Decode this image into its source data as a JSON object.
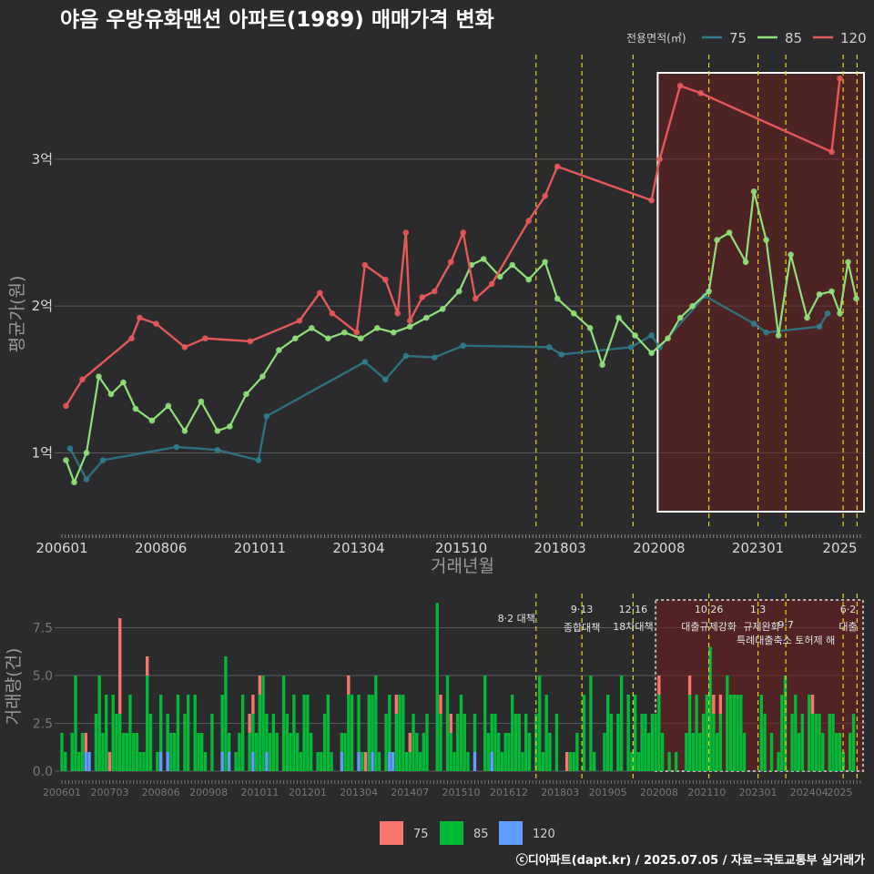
{
  "title": "야음 우방유화맨션 아파트(1989) 매매가격 변화",
  "footer": "ⓒ디아파트(dapt.kr) / 2025.07.05 / 자료=국토교통부 실거래가",
  "legend_top": {
    "title": "전용면적(㎡)",
    "items": [
      "75",
      "85",
      "120"
    ]
  },
  "legend_bottom": {
    "items": [
      "75",
      "85",
      "120"
    ]
  },
  "colors": {
    "s75": "#2e7d8c",
    "s85": "#90e07a",
    "s120": "#e5585a",
    "b75": "#f8766d",
    "b85": "#00ba38",
    "b120": "#619cff",
    "policy": "#e8d21d",
    "highlight": "#6b1e1e"
  },
  "chart_data": [
    {
      "type": "line",
      "title": "야음 우방유화맨션 아파트(1989) 매매가격 변화",
      "xlabel": "거래년월",
      "ylabel": "평균가(원)",
      "x_ticks": [
        "200601",
        "200806",
        "201011",
        "201304",
        "201510",
        "201803",
        "202008",
        "202301",
        "2025"
      ],
      "y_ticks": [
        "1억",
        "2억",
        "3억"
      ],
      "y_range_billion_krw": [
        0.6,
        3.65
      ],
      "series": [
        {
          "name": "75",
          "points": [
            [
              2006.2,
              1.03
            ],
            [
              2006.6,
              0.82
            ],
            [
              2007.0,
              0.95
            ],
            [
              2008.8,
              1.04
            ],
            [
              2009.8,
              1.02
            ],
            [
              2010.8,
              0.95
            ],
            [
              2011.0,
              1.25
            ],
            [
              2013.4,
              1.62
            ],
            [
              2013.9,
              1.5
            ],
            [
              2014.4,
              1.66
            ],
            [
              2015.1,
              1.65
            ],
            [
              2015.8,
              1.73
            ],
            [
              2017.9,
              1.72
            ],
            [
              2018.2,
              1.67
            ],
            [
              2019.9,
              1.72
            ],
            [
              2020.4,
              1.8
            ],
            [
              2020.6,
              1.72
            ],
            [
              2021.7,
              2.07
            ],
            [
              2022.9,
              1.88
            ],
            [
              2023.2,
              1.82
            ],
            [
              2024.5,
              1.86
            ],
            [
              2024.7,
              1.95
            ]
          ]
        },
        {
          "name": "85",
          "points": [
            [
              2006.1,
              0.95
            ],
            [
              2006.3,
              0.8
            ],
            [
              2006.6,
              1.0
            ],
            [
              2006.9,
              1.52
            ],
            [
              2007.2,
              1.4
            ],
            [
              2007.5,
              1.48
            ],
            [
              2007.8,
              1.3
            ],
            [
              2008.2,
              1.22
            ],
            [
              2008.6,
              1.32
            ],
            [
              2009.0,
              1.15
            ],
            [
              2009.4,
              1.35
            ],
            [
              2009.8,
              1.15
            ],
            [
              2010.1,
              1.18
            ],
            [
              2010.5,
              1.4
            ],
            [
              2010.9,
              1.52
            ],
            [
              2011.3,
              1.7
            ],
            [
              2011.7,
              1.78
            ],
            [
              2012.1,
              1.85
            ],
            [
              2012.5,
              1.78
            ],
            [
              2012.9,
              1.82
            ],
            [
              2013.3,
              1.78
            ],
            [
              2013.7,
              1.85
            ],
            [
              2014.1,
              1.82
            ],
            [
              2014.5,
              1.86
            ],
            [
              2014.9,
              1.92
            ],
            [
              2015.3,
              1.98
            ],
            [
              2015.7,
              2.1
            ],
            [
              2016.0,
              2.28
            ],
            [
              2016.3,
              2.32
            ],
            [
              2016.7,
              2.2
            ],
            [
              2017.0,
              2.28
            ],
            [
              2017.4,
              2.18
            ],
            [
              2017.8,
              2.3
            ],
            [
              2018.1,
              2.05
            ],
            [
              2018.5,
              1.95
            ],
            [
              2018.9,
              1.85
            ],
            [
              2019.2,
              1.6
            ],
            [
              2019.6,
              1.92
            ],
            [
              2020.0,
              1.8
            ],
            [
              2020.4,
              1.68
            ],
            [
              2020.8,
              1.78
            ],
            [
              2021.1,
              1.92
            ],
            [
              2021.4,
              2.0
            ],
            [
              2021.8,
              2.1
            ],
            [
              2022.0,
              2.45
            ],
            [
              2022.3,
              2.5
            ],
            [
              2022.7,
              2.3
            ],
            [
              2022.9,
              2.78
            ],
            [
              2023.2,
              2.45
            ],
            [
              2023.5,
              1.8
            ],
            [
              2023.8,
              2.35
            ],
            [
              2024.2,
              1.92
            ],
            [
              2024.5,
              2.08
            ],
            [
              2024.8,
              2.1
            ],
            [
              2025.0,
              1.95
            ],
            [
              2025.2,
              2.3
            ],
            [
              2025.4,
              2.05
            ]
          ]
        },
        {
          "name": "120",
          "points": [
            [
              2006.1,
              1.32
            ],
            [
              2006.5,
              1.5
            ],
            [
              2007.7,
              1.78
            ],
            [
              2007.9,
              1.92
            ],
            [
              2008.3,
              1.88
            ],
            [
              2009.0,
              1.72
            ],
            [
              2009.5,
              1.78
            ],
            [
              2010.6,
              1.76
            ],
            [
              2011.8,
              1.9
            ],
            [
              2012.3,
              2.09
            ],
            [
              2012.6,
              1.95
            ],
            [
              2013.2,
              1.82
            ],
            [
              2013.4,
              2.28
            ],
            [
              2013.9,
              2.18
            ],
            [
              2014.2,
              1.95
            ],
            [
              2014.4,
              2.5
            ],
            [
              2014.5,
              1.9
            ],
            [
              2014.8,
              2.06
            ],
            [
              2015.1,
              2.1
            ],
            [
              2015.5,
              2.3
            ],
            [
              2015.8,
              2.5
            ],
            [
              2016.1,
              2.05
            ],
            [
              2016.5,
              2.15
            ],
            [
              2017.4,
              2.58
            ],
            [
              2017.8,
              2.75
            ],
            [
              2018.1,
              2.95
            ],
            [
              2020.4,
              2.72
            ],
            [
              2020.6,
              3.0
            ],
            [
              2021.1,
              3.5
            ],
            [
              2021.6,
              3.45
            ],
            [
              2024.8,
              3.05
            ],
            [
              2025.0,
              3.55
            ]
          ]
        }
      ]
    },
    {
      "type": "bar",
      "ylabel": "거래량(건)",
      "x_ticks": [
        "200601",
        "200703",
        "200806",
        "200908",
        "201011",
        "201201",
        "201304",
        "201407",
        "201510",
        "201612",
        "201803",
        "201905",
        "202008",
        "202110",
        "202301",
        "202404",
        "2025"
      ],
      "y_ticks": [
        "0.0",
        "2.5",
        "5.0",
        "7.5"
      ],
      "y_range": [
        0,
        9
      ],
      "series": [
        {
          "name": "75",
          "peaks": [
            [
              2007.4,
              8.0
            ],
            [
              2017.1,
              3.0
            ]
          ]
        },
        {
          "name": "85",
          "peaks": [
            [
              2006.3,
              5.0
            ],
            [
              2010.0,
              6.0
            ],
            [
              2015.2,
              8.8
            ],
            [
              2016.3,
              5.0
            ],
            [
              2021.8,
              6.5
            ]
          ]
        },
        {
          "name": "120",
          "peaks": [
            [
              2012.8,
              1.0
            ],
            [
              2013.6,
              1.0
            ],
            [
              2014.0,
              1.0
            ]
          ]
        }
      ]
    }
  ],
  "annotations": [
    {
      "line1": "",
      "line2": "8·2 대책"
    },
    {
      "line1": "9·13",
      "line2": "종합대책"
    },
    {
      "line1": "12·16",
      "line2": "18차대책"
    },
    {
      "line1": "10·26",
      "line2": "대출규제강화"
    },
    {
      "line1": "1·3",
      "line2": "규제완화"
    },
    {
      "line1": "9·7",
      "line2": "특례대출축소 토허제 해"
    },
    {
      "line1": "6·2",
      "line2": "대출"
    }
  ]
}
